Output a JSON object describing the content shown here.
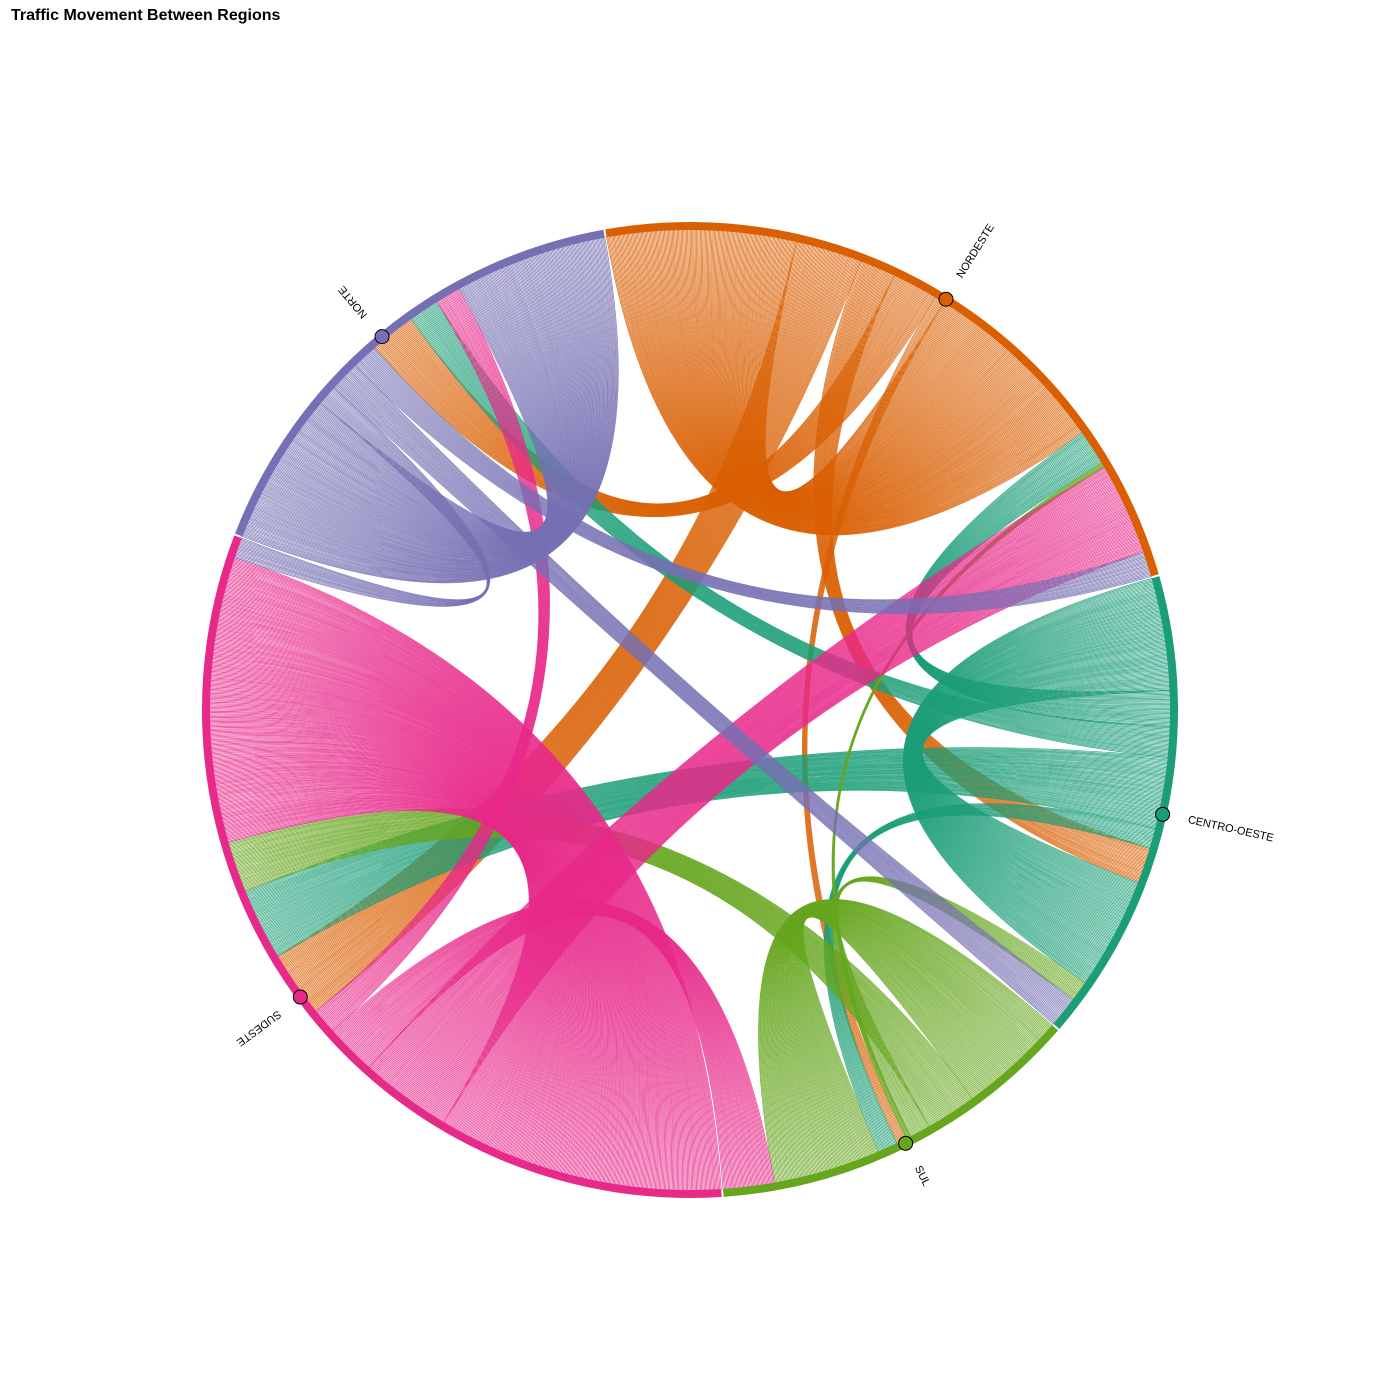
{
  "title": "Traffic Movement Between Regions",
  "chart_data": {
    "type": "chord",
    "title": "Traffic Movement Between Regions",
    "regions": [
      {
        "name": "NORDESTE",
        "color": "#d95f02"
      },
      {
        "name": "CENTRO-OESTE",
        "color": "#1b9e77"
      },
      {
        "name": "SUL",
        "color": "#66a61e"
      },
      {
        "name": "SUDESTE",
        "color": "#e7298a"
      },
      {
        "name": "NORTE",
        "color": "#7570b3"
      }
    ],
    "flows": [
      {
        "source": "NORDESTE",
        "target": "NORDESTE",
        "value": 37
      },
      {
        "source": "NORDESTE",
        "target": "SUDESTE",
        "value": 13
      },
      {
        "source": "NORDESTE",
        "target": "CENTRO-OESTE",
        "value": 7
      },
      {
        "source": "NORDESTE",
        "target": "NORTE",
        "value": 9
      },
      {
        "source": "NORDESTE",
        "target": "SUL",
        "value": 2
      },
      {
        "source": "CENTRO-OESTE",
        "target": "CENTRO-OESTE",
        "value": 22
      },
      {
        "source": "CENTRO-OESTE",
        "target": "NORDESTE",
        "value": 7
      },
      {
        "source": "CENTRO-OESTE",
        "target": "NORTE",
        "value": 6
      },
      {
        "source": "CENTRO-OESTE",
        "target": "SUDESTE",
        "value": 14
      },
      {
        "source": "CENTRO-OESTE",
        "target": "SUL",
        "value": 4
      },
      {
        "source": "SUL",
        "target": "SUL",
        "value": 21
      },
      {
        "source": "SUL",
        "target": "SUDESTE",
        "value": 10
      },
      {
        "source": "SUL",
        "target": "CENTRO-OESTE",
        "value": 4
      },
      {
        "source": "SUL",
        "target": "NORDESTE",
        "value": 1
      },
      {
        "source": "SUDESTE",
        "target": "SUDESTE",
        "value": 56
      },
      {
        "source": "SUDESTE",
        "target": "NORDESTE",
        "value": 18
      },
      {
        "source": "SUDESTE",
        "target": "SUL",
        "value": 10
      },
      {
        "source": "SUDESTE",
        "target": "NORTE",
        "value": 5
      },
      {
        "source": "NORTE",
        "target": "NORTE",
        "value": 30
      },
      {
        "source": "NORTE",
        "target": "SUDESTE",
        "value": 4
      },
      {
        "source": "NORTE",
        "target": "CENTRO-OESTE",
        "value": 6
      },
      {
        "source": "NORTE",
        "target": "NORDESTE",
        "value": 5
      }
    ]
  }
}
